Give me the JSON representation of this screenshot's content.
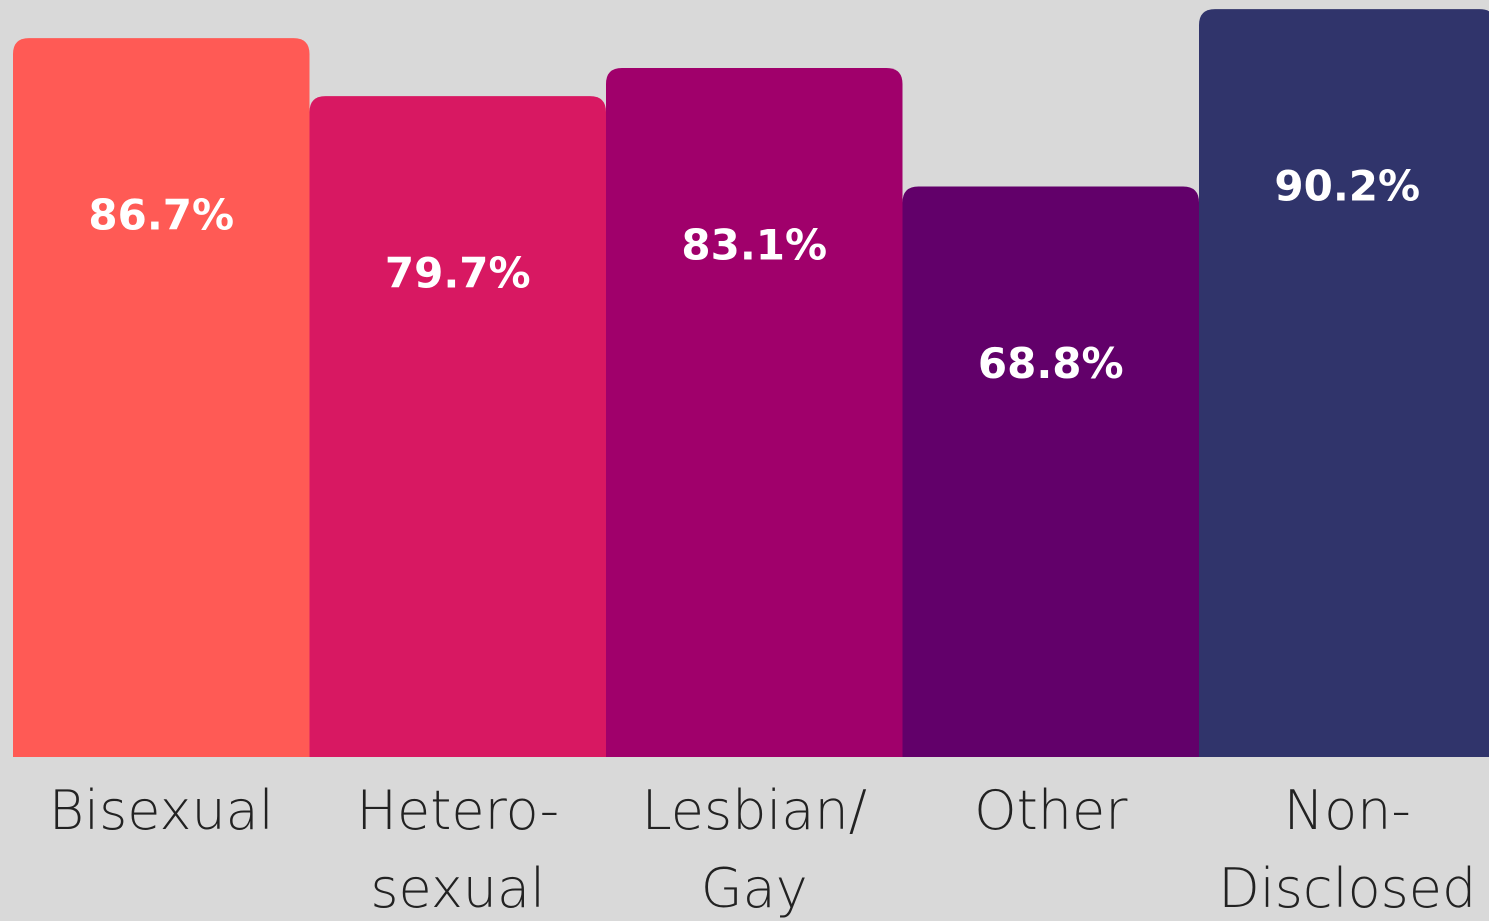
{
  "chart_data": {
    "type": "bar",
    "categories": [
      "Bisexual",
      "Hetero-\nsexual",
      "Lesbian/\nGay",
      "Other",
      "Non-\nDisclosed"
    ],
    "values": [
      86.7,
      79.7,
      83.1,
      68.8,
      90.2
    ],
    "value_labels": [
      "86.7%",
      "79.7%",
      "83.1%",
      "68.8%",
      "90.2%"
    ],
    "colors": [
      "#ff5a55",
      "#d81862",
      "#a0006b",
      "#62006a",
      "#30346b"
    ],
    "ylim": [
      0,
      91.3
    ]
  }
}
